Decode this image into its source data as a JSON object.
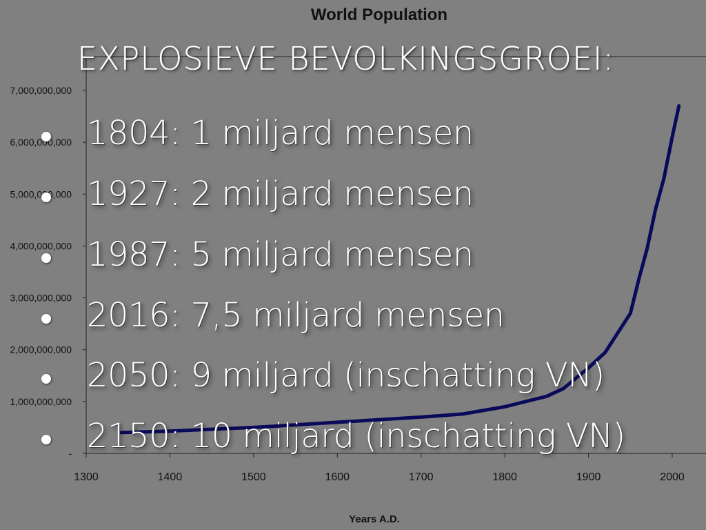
{
  "slide": {
    "heading": "Explosieve bevolkingsgroei:",
    "bullets": [
      "1804: 1 miljard mensen",
      "1927: 2 miljard mensen",
      "1987: 5 miljard mensen",
      "2016: 7,5 miljard mensen",
      "2050: 9 miljard (inschatting VN)",
      "2150: 10 miljard (inschatting VN)"
    ]
  },
  "chart_data": {
    "type": "line",
    "title": "World Population",
    "xlabel": "Years A.D.",
    "ylabel": "",
    "xlim": [
      1300,
      2000
    ],
    "ylim": [
      0,
      7000000000
    ],
    "x_ticks": [
      "1300",
      "1400",
      "1500",
      "1600",
      "1700",
      "1800",
      "1900",
      "2000"
    ],
    "y_ticks": [
      "-",
      "1,000,000,000",
      "2,000,000,000",
      "3,000,000,000",
      "4,000,000,000",
      "5,000,000,000",
      "6,000,000,000",
      "7,000,000,000"
    ],
    "series": [
      {
        "color": "#0a0a5a",
        "x": [
          1340,
          1400,
          1500,
          1600,
          1700,
          1750,
          1800,
          1850,
          1870,
          1900,
          1920,
          1930,
          1950,
          1960,
          1970,
          1980,
          1990,
          2000,
          2008
        ],
        "y": [
          400000000,
          430000000,
          500000000,
          600000000,
          700000000,
          760000000,
          900000000,
          1100000000,
          1250000000,
          1650000000,
          1950000000,
          2200000000,
          2700000000,
          3350000000,
          3950000000,
          4700000000,
          5300000000,
          6100000000,
          6700000000
        ]
      }
    ],
    "grid": false,
    "legend": "none"
  }
}
